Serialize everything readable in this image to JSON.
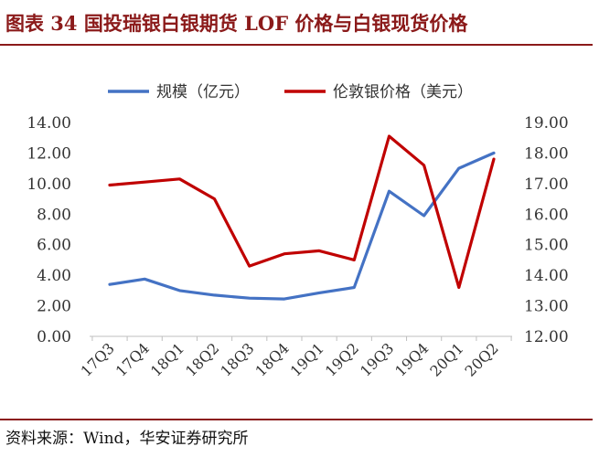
{
  "title": "图表 34 国投瑞银白银期货 LOF 价格与白银现货价格",
  "source": "资料来源：Wind，华安证券研究所",
  "chart_data": {
    "type": "line",
    "categories": [
      "17Q3",
      "17Q4",
      "18Q1",
      "18Q2",
      "18Q3",
      "18Q4",
      "19Q1",
      "19Q2",
      "19Q3",
      "19Q4",
      "20Q1",
      "20Q2"
    ],
    "legend_position": "top",
    "grid": false,
    "series": [
      {
        "name": "规模（亿元）",
        "axis": "left",
        "color": "#4472c4",
        "values": [
          3.4,
          3.75,
          3.0,
          2.7,
          2.5,
          2.45,
          2.85,
          3.2,
          9.5,
          7.9,
          11.0,
          12.0
        ]
      },
      {
        "name": "伦敦银价格（美元）",
        "axis": "right",
        "color": "#c00000",
        "values": [
          16.95,
          17.05,
          17.15,
          16.5,
          14.3,
          14.7,
          14.8,
          14.5,
          18.55,
          17.6,
          13.6,
          17.8
        ]
      }
    ],
    "y_left": {
      "ylim": [
        0,
        14
      ],
      "ticks": [
        "0.00",
        "2.00",
        "4.00",
        "6.00",
        "8.00",
        "10.00",
        "12.00",
        "14.00"
      ]
    },
    "y_right": {
      "ylim": [
        12,
        19
      ],
      "ticks": [
        "12.00",
        "13.00",
        "14.00",
        "15.00",
        "16.00",
        "17.00",
        "18.00",
        "19.00"
      ]
    }
  }
}
